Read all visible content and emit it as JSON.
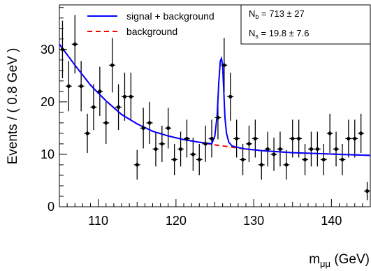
{
  "chart_data": {
    "type": "scatter",
    "title": "",
    "xlabel": "m",
    "xlabel_subscript": "μμ",
    "xlabel_unit": "(GeV)",
    "ylabel": "Events / ( 0.8 GeV )",
    "xlim": [
      105,
      145
    ],
    "ylim": [
      0,
      38.5
    ],
    "xticks": [
      110,
      120,
      130,
      140
    ],
    "yticks": [
      0,
      10,
      20,
      30
    ],
    "grid": false,
    "legend_position": "top-left",
    "legend": {
      "signal_plus_background": "signal + background",
      "background": "background"
    },
    "stats": {
      "nb_symbol": "N",
      "nb_sub": "b",
      "nb_text": "=  713 ± 27",
      "ns_symbol": "N",
      "ns_sub": "s",
      "ns_text": "=  19.8 ± 7.6"
    },
    "colors": {
      "signal_plus_background": "#0000ff",
      "background": "#ff0000",
      "data": "#000000"
    },
    "data_points": {
      "x": [
        105.4,
        106.2,
        107.0,
        107.8,
        108.6,
        109.4,
        110.2,
        111.0,
        111.8,
        112.6,
        113.4,
        114.2,
        115.0,
        115.8,
        116.6,
        117.4,
        118.2,
        119.0,
        119.8,
        120.6,
        121.4,
        122.2,
        123.0,
        123.8,
        124.6,
        125.4,
        126.2,
        127.0,
        127.8,
        128.6,
        129.4,
        130.2,
        131.0,
        131.8,
        132.6,
        133.4,
        134.2,
        135.0,
        135.8,
        136.6,
        137.4,
        138.2,
        139.0,
        139.8,
        140.6,
        141.4,
        142.2,
        143.0,
        143.8,
        144.6
      ],
      "y": [
        30,
        23,
        31,
        23,
        14,
        19,
        22,
        16,
        27,
        19,
        21,
        21,
        8,
        15,
        16,
        11,
        12,
        15,
        9,
        11,
        13,
        10,
        9,
        12,
        13,
        17,
        27,
        21,
        13,
        9,
        12,
        13,
        8,
        11,
        10,
        11,
        8,
        13,
        13,
        9,
        11,
        11,
        9,
        14,
        11,
        9,
        13,
        13,
        14,
        3
      ]
    },
    "curves": {
      "background": {
        "x": [
          105,
          107,
          109,
          111,
          113,
          115,
          117,
          119,
          121,
          123,
          125,
          127,
          129,
          131,
          133,
          135,
          137,
          139,
          141,
          143,
          145
        ],
        "y": [
          31.0,
          27.0,
          23.2,
          20.2,
          17.6,
          15.8,
          14.4,
          13.5,
          12.8,
          12.3,
          11.8,
          11.4,
          11.0,
          10.7,
          10.5,
          10.3,
          10.2,
          10.1,
          10.0,
          9.9,
          9.8
        ]
      },
      "signal_plus_background": {
        "x": [
          105,
          107,
          109,
          111,
          113,
          115,
          117,
          119,
          121,
          123,
          124.6,
          125.0,
          125.3,
          125.5,
          125.7,
          125.85,
          126.0,
          126.15,
          126.3,
          126.5,
          126.8,
          127.2,
          128,
          129,
          131,
          133,
          135,
          137,
          139,
          141,
          143,
          145
        ],
        "y": [
          31.0,
          27.0,
          23.2,
          20.2,
          17.6,
          15.8,
          14.4,
          13.5,
          12.8,
          12.3,
          12.0,
          13.5,
          17.5,
          23.5,
          27.8,
          28.3,
          27.0,
          22.0,
          17.0,
          14.0,
          12.3,
          11.6,
          11.3,
          11.0,
          10.7,
          10.5,
          10.3,
          10.2,
          10.1,
          10.0,
          9.9,
          9.8
        ]
      }
    }
  }
}
